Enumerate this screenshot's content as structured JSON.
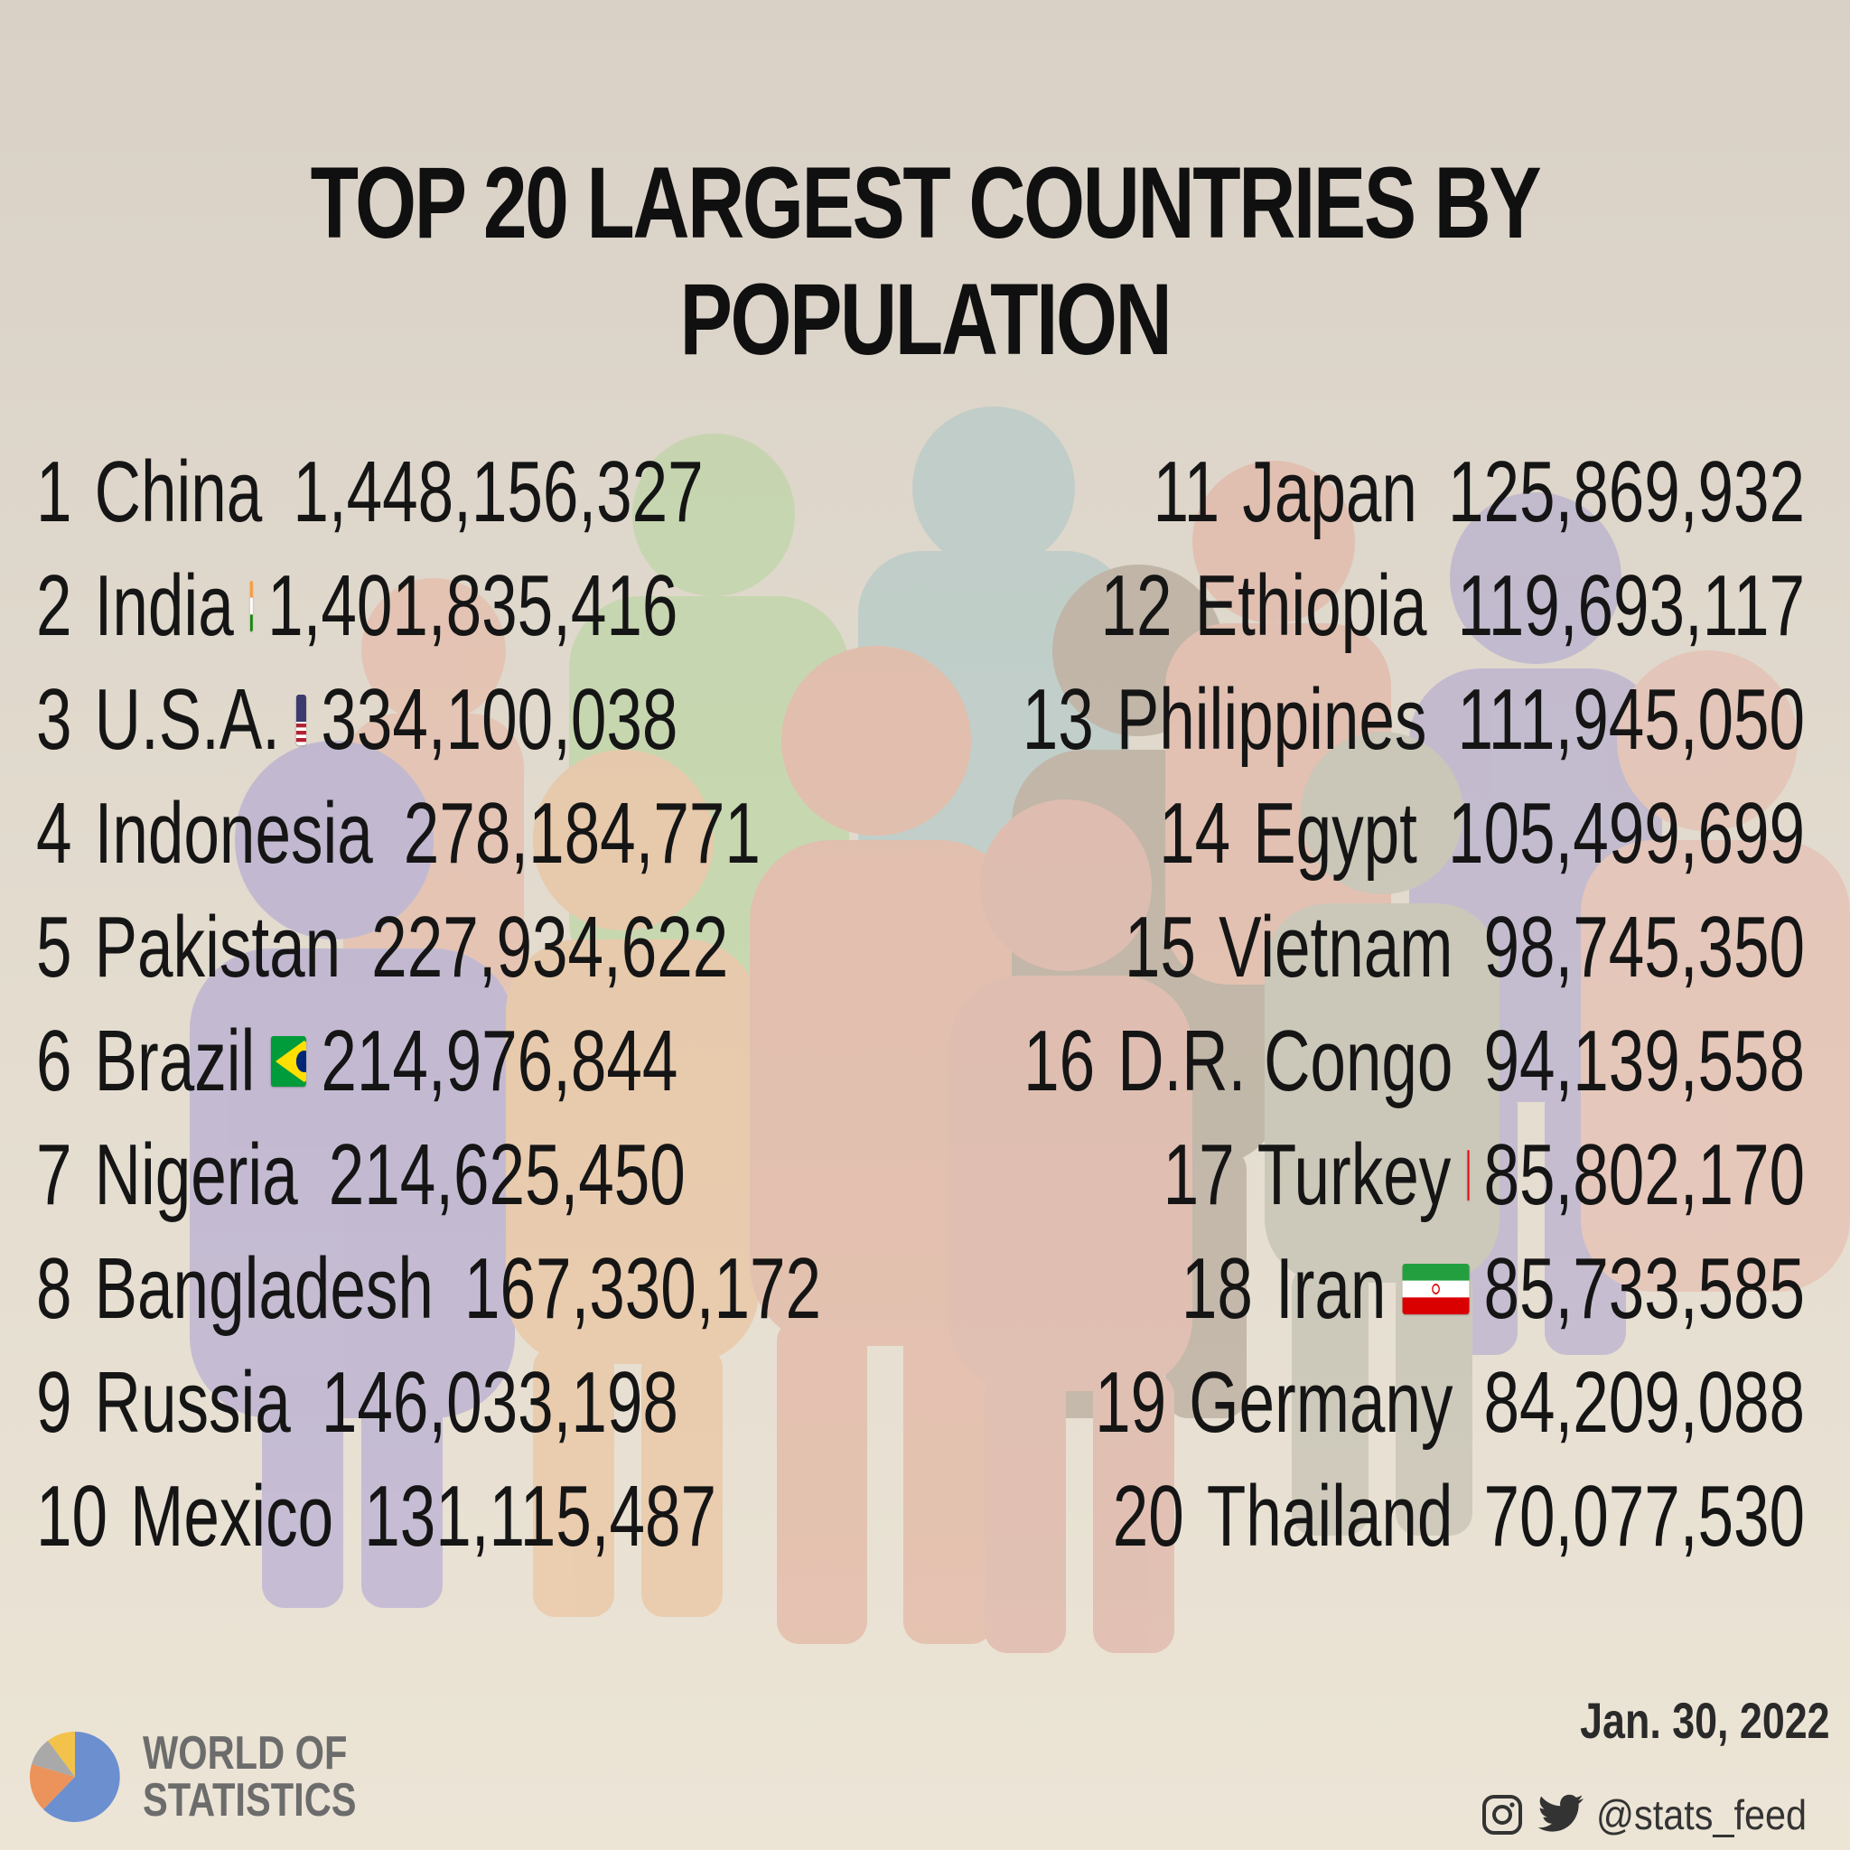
{
  "title": "TOP 20 LARGEST COUNTRIES BY POPULATION",
  "countries": [
    {
      "rank": "1",
      "name": "China",
      "population": "1,448,156,327",
      "flag": "china-flag"
    },
    {
      "rank": "2",
      "name": "India",
      "population": "1,401,835,416",
      "flag": "india-flag"
    },
    {
      "rank": "3",
      "name": "U.S.A.",
      "population": "334,100,038",
      "flag": "usa-flag"
    },
    {
      "rank": "4",
      "name": "Indonesia",
      "population": "278,184,771",
      "flag": "indonesia-flag"
    },
    {
      "rank": "5",
      "name": "Pakistan",
      "population": "227,934,622",
      "flag": "pakistan-flag"
    },
    {
      "rank": "6",
      "name": "Brazil",
      "population": "214,976,844",
      "flag": "brazil-flag"
    },
    {
      "rank": "7",
      "name": "Nigeria",
      "population": "214,625,450",
      "flag": "nigeria-flag"
    },
    {
      "rank": "8",
      "name": "Bangladesh",
      "population": "167,330,172",
      "flag": "bangladesh-flag"
    },
    {
      "rank": "9",
      "name": "Russia",
      "population": "146,033,198",
      "flag": "russia-flag"
    },
    {
      "rank": "10",
      "name": "Mexico",
      "population": "131,115,487",
      "flag": "mexico-flag"
    },
    {
      "rank": "11",
      "name": "Japan",
      "population": "125,869,932",
      "flag": "japan-flag"
    },
    {
      "rank": "12",
      "name": "Ethiopia",
      "population": "119,693,117",
      "flag": "ethiopia-flag"
    },
    {
      "rank": "13",
      "name": "Philippines",
      "population": "111,945,050",
      "flag": "philippines-flag"
    },
    {
      "rank": "14",
      "name": "Egypt",
      "population": "105,499,699",
      "flag": "egypt-flag"
    },
    {
      "rank": "15",
      "name": "Vietnam",
      "population": "98,745,350",
      "flag": "vietnam-flag"
    },
    {
      "rank": "16",
      "name": "D.R. Congo",
      "population": "94,139,558",
      "flag": "dr-congo-flag"
    },
    {
      "rank": "17",
      "name": "Turkey",
      "population": "85,802,170",
      "flag": "turkey-flag"
    },
    {
      "rank": "18",
      "name": "Iran",
      "population": "85,733,585",
      "flag": "iran-flag"
    },
    {
      "rank": "19",
      "name": "Germany",
      "population": "84,209,088",
      "flag": "germany-flag"
    },
    {
      "rank": "20",
      "name": "Thailand",
      "population": "70,077,530",
      "flag": "thailand-flag"
    }
  ],
  "date": "Jan. 30, 2022",
  "social": {
    "handle": "@stats_feed",
    "icons": [
      "instagram-icon",
      "twitter-icon"
    ]
  },
  "logo": {
    "line1": "WORLD OF",
    "line2": "STATISTICS",
    "icon": "pie-chart-logo-icon",
    "colors": [
      "#6c8fd0",
      "#eb935b",
      "#f2c24a",
      "#a9a9a9"
    ]
  },
  "background": {
    "figure_colors": [
      "#b7c9c8",
      "#b7d3a3",
      "#e7b4a0",
      "#b3a8cf",
      "#e6b896",
      "#a99d8f",
      "#e2b0a6"
    ]
  }
}
